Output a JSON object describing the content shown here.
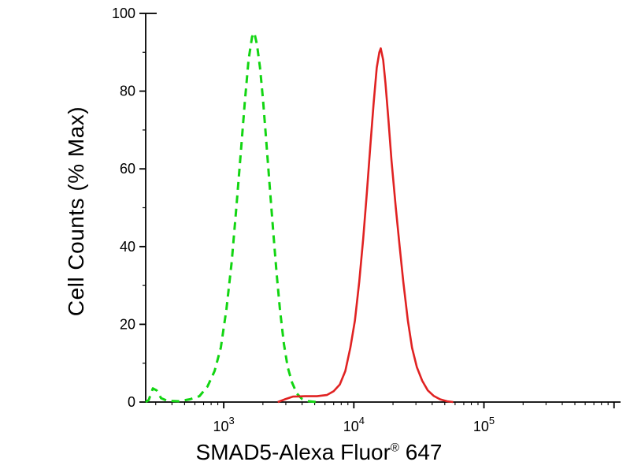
{
  "chart_data": {
    "type": "line",
    "title": "",
    "ylabel": "Cell Counts (% Max)",
    "xlabel_main": "SMAD5-Alexa Fluor",
    "xlabel_registered": "®",
    "xlabel_suffix": " 647",
    "x_scale": "log",
    "xlim_log": [
      2.4,
      6.05
    ],
    "ylim": [
      0,
      100
    ],
    "yticks": [
      0,
      20,
      40,
      60,
      80,
      100
    ],
    "yminor": [
      10,
      30,
      50,
      70,
      90
    ],
    "xtick_exponents": [
      3,
      4,
      5
    ],
    "grid": false,
    "legend": "none",
    "series": [
      {
        "name": "green-dashed-curve",
        "color": "#12d512",
        "style": "dashed",
        "points": [
          [
            251,
            0
          ],
          [
            265,
            0.5
          ],
          [
            285,
            3.5
          ],
          [
            305,
            3
          ],
          [
            330,
            1
          ],
          [
            370,
            0.3
          ],
          [
            450,
            0.2
          ],
          [
            550,
            0.7
          ],
          [
            650,
            1.5
          ],
          [
            750,
            4
          ],
          [
            850,
            8
          ],
          [
            950,
            14
          ],
          [
            1050,
            24
          ],
          [
            1150,
            36
          ],
          [
            1250,
            50
          ],
          [
            1350,
            64
          ],
          [
            1450,
            77
          ],
          [
            1550,
            88
          ],
          [
            1650,
            94
          ],
          [
            1720,
            95
          ],
          [
            1800,
            92
          ],
          [
            1900,
            86
          ],
          [
            2000,
            78
          ],
          [
            2100,
            69
          ],
          [
            2250,
            56
          ],
          [
            2400,
            44
          ],
          [
            2550,
            33
          ],
          [
            2700,
            24
          ],
          [
            2900,
            15
          ],
          [
            3100,
            9
          ],
          [
            3350,
            5
          ],
          [
            3650,
            2.2
          ],
          [
            4000,
            0.8
          ],
          [
            4500,
            0.2
          ],
          [
            5200,
            0
          ]
        ]
      },
      {
        "name": "red-solid-curve",
        "color": "#e02222",
        "style": "solid",
        "points": [
          [
            2600,
            0
          ],
          [
            3000,
            0.8
          ],
          [
            3400,
            1.4
          ],
          [
            4200,
            1.5
          ],
          [
            5200,
            1.5
          ],
          [
            6200,
            1.8
          ],
          [
            7000,
            2.8
          ],
          [
            7800,
            4.5
          ],
          [
            8600,
            8
          ],
          [
            9400,
            14
          ],
          [
            10200,
            21
          ],
          [
            11000,
            31
          ],
          [
            11800,
            42
          ],
          [
            12600,
            54
          ],
          [
            13400,
            66
          ],
          [
            14200,
            77
          ],
          [
            15000,
            86
          ],
          [
            15700,
            90
          ],
          [
            16100,
            91
          ],
          [
            16800,
            88
          ],
          [
            17500,
            82
          ],
          [
            18400,
            73
          ],
          [
            19500,
            62
          ],
          [
            21000,
            50
          ],
          [
            22500,
            40
          ],
          [
            24000,
            31
          ],
          [
            26000,
            21
          ],
          [
            28000,
            14
          ],
          [
            30500,
            9
          ],
          [
            33500,
            5.5
          ],
          [
            37000,
            3
          ],
          [
            41000,
            1.6
          ],
          [
            46000,
            0.7
          ],
          [
            52000,
            0.2
          ],
          [
            58000,
            0
          ]
        ]
      }
    ]
  }
}
